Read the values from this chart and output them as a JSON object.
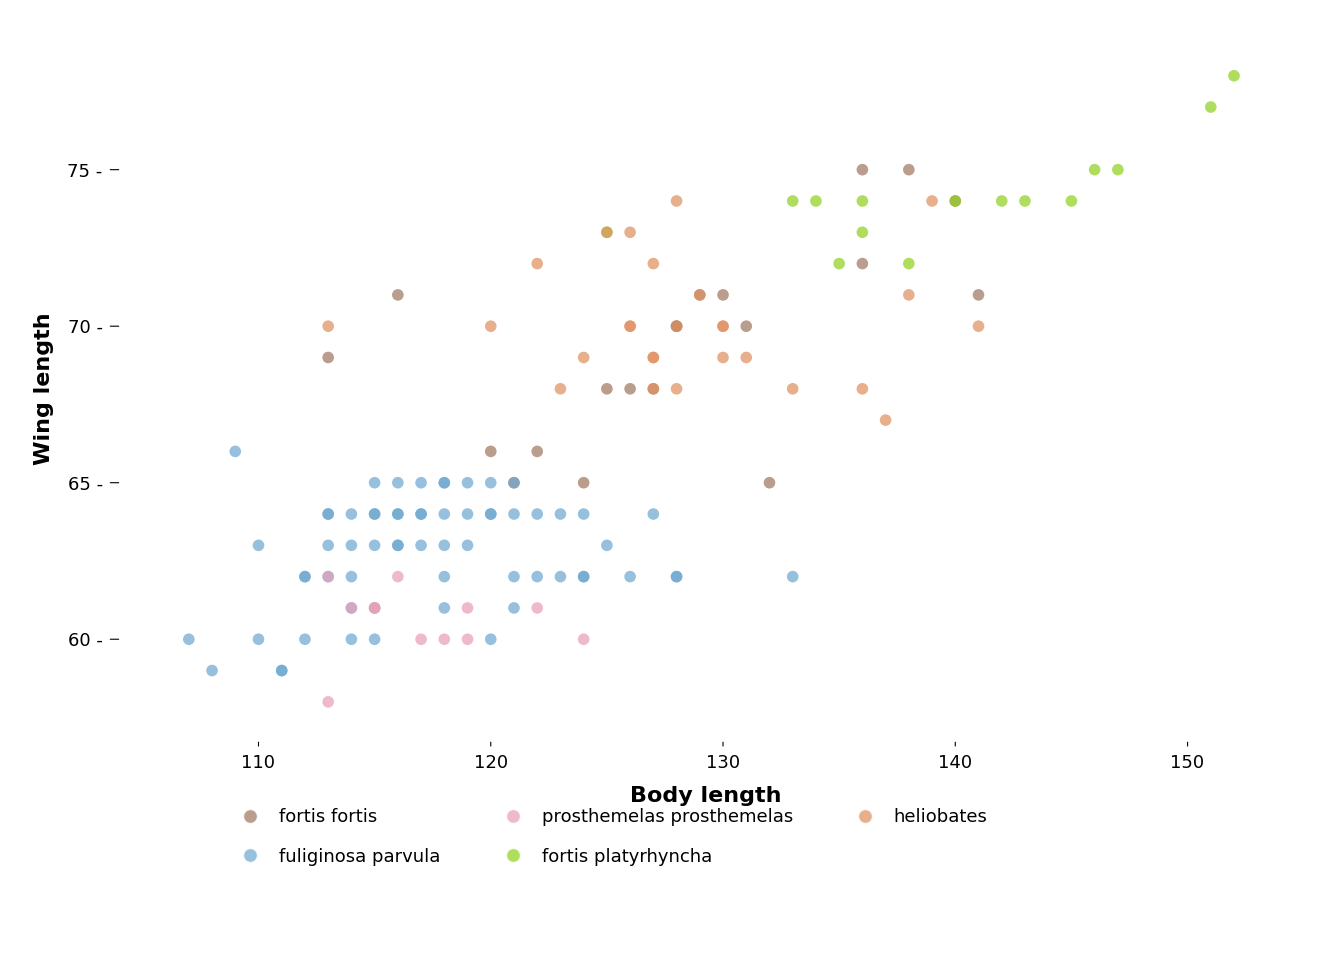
{
  "species": {
    "fortis_fortis": {
      "color": "#A07860",
      "label": "fortis fortis",
      "points": [
        [
          113,
          69
        ],
        [
          116,
          71
        ],
        [
          120,
          66
        ],
        [
          121,
          65
        ],
        [
          122,
          66
        ],
        [
          124,
          65
        ],
        [
          125,
          68
        ],
        [
          126,
          68
        ],
        [
          127,
          68
        ],
        [
          128,
          70
        ],
        [
          128,
          70
        ],
        [
          129,
          71
        ],
        [
          130,
          71
        ],
        [
          131,
          70
        ],
        [
          132,
          65
        ],
        [
          136,
          72
        ],
        [
          136,
          75
        ],
        [
          138,
          75
        ],
        [
          140,
          74
        ],
        [
          141,
          71
        ]
      ]
    },
    "fuliginosa_parvula": {
      "color": "#6EA8D0",
      "label": "fuliginosa parvula",
      "points": [
        [
          107,
          60
        ],
        [
          108,
          59
        ],
        [
          109,
          66
        ],
        [
          110,
          63
        ],
        [
          110,
          60
        ],
        [
          111,
          59
        ],
        [
          111,
          59
        ],
        [
          112,
          62
        ],
        [
          112,
          62
        ],
        [
          112,
          60
        ],
        [
          113,
          64
        ],
        [
          113,
          64
        ],
        [
          113,
          63
        ],
        [
          113,
          62
        ],
        [
          114,
          64
        ],
        [
          114,
          63
        ],
        [
          114,
          62
        ],
        [
          114,
          61
        ],
        [
          114,
          60
        ],
        [
          115,
          65
        ],
        [
          115,
          64
        ],
        [
          115,
          64
        ],
        [
          115,
          63
        ],
        [
          115,
          61
        ],
        [
          115,
          60
        ],
        [
          116,
          65
        ],
        [
          116,
          64
        ],
        [
          116,
          64
        ],
        [
          116,
          63
        ],
        [
          116,
          63
        ],
        [
          117,
          65
        ],
        [
          117,
          64
        ],
        [
          117,
          64
        ],
        [
          117,
          63
        ],
        [
          118,
          65
        ],
        [
          118,
          65
        ],
        [
          118,
          64
        ],
        [
          118,
          63
        ],
        [
          118,
          62
        ],
        [
          118,
          61
        ],
        [
          119,
          65
        ],
        [
          119,
          64
        ],
        [
          119,
          63
        ],
        [
          120,
          65
        ],
        [
          120,
          64
        ],
        [
          120,
          64
        ],
        [
          120,
          60
        ],
        [
          121,
          65
        ],
        [
          121,
          64
        ],
        [
          121,
          62
        ],
        [
          121,
          61
        ],
        [
          122,
          64
        ],
        [
          122,
          62
        ],
        [
          123,
          64
        ],
        [
          123,
          62
        ],
        [
          124,
          64
        ],
        [
          124,
          62
        ],
        [
          124,
          62
        ],
        [
          125,
          63
        ],
        [
          126,
          62
        ],
        [
          127,
          64
        ],
        [
          128,
          62
        ],
        [
          128,
          62
        ],
        [
          133,
          62
        ]
      ]
    },
    "prosthemelas_prosthemelas": {
      "color": "#E8A0B8",
      "label": "prosthemelas prosthemelas",
      "points": [
        [
          113,
          62
        ],
        [
          114,
          61
        ],
        [
          115,
          61
        ],
        [
          115,
          61
        ],
        [
          116,
          62
        ],
        [
          117,
          60
        ],
        [
          118,
          60
        ],
        [
          119,
          60
        ],
        [
          119,
          61
        ],
        [
          122,
          61
        ],
        [
          124,
          60
        ],
        [
          113,
          58
        ]
      ]
    },
    "fortis_platyrhyncha": {
      "color": "#90D020",
      "label": "fortis platyrhyncha",
      "points": [
        [
          125,
          73
        ],
        [
          133,
          74
        ],
        [
          134,
          74
        ],
        [
          135,
          72
        ],
        [
          136,
          74
        ],
        [
          136,
          73
        ],
        [
          138,
          72
        ],
        [
          140,
          74
        ],
        [
          142,
          74
        ],
        [
          143,
          74
        ],
        [
          145,
          74
        ],
        [
          146,
          75
        ],
        [
          147,
          75
        ],
        [
          151,
          77
        ],
        [
          152,
          78
        ]
      ]
    },
    "heliobates": {
      "color": "#E09060",
      "label": "heliobates",
      "points": [
        [
          113,
          70
        ],
        [
          120,
          70
        ],
        [
          122,
          72
        ],
        [
          123,
          68
        ],
        [
          124,
          69
        ],
        [
          125,
          73
        ],
        [
          126,
          73
        ],
        [
          126,
          70
        ],
        [
          126,
          70
        ],
        [
          127,
          72
        ],
        [
          127,
          69
        ],
        [
          127,
          69
        ],
        [
          127,
          68
        ],
        [
          128,
          70
        ],
        [
          128,
          68
        ],
        [
          128,
          74
        ],
        [
          129,
          71
        ],
        [
          130,
          70
        ],
        [
          130,
          70
        ],
        [
          130,
          69
        ],
        [
          131,
          69
        ],
        [
          133,
          68
        ],
        [
          136,
          68
        ],
        [
          137,
          67
        ],
        [
          138,
          71
        ],
        [
          139,
          74
        ],
        [
          141,
          70
        ]
      ]
    }
  },
  "xlabel": "Body length",
  "ylabel": "Wing length",
  "xlim": [
    103.5,
    155
  ],
  "ylim": [
    56.5,
    79.5
  ],
  "xticks": [
    110,
    120,
    130,
    140,
    150
  ],
  "yticks": [
    60,
    65,
    70,
    75
  ],
  "background_color": "#ffffff",
  "marker_size": 70,
  "alpha": 0.72,
  "axis_label_fontsize": 16,
  "tick_fontsize": 13,
  "legend_fontsize": 13,
  "legend_order": [
    "fortis_fortis",
    "fuliginosa_parvula",
    "prosthemelas_prosthemelas",
    "fortis_platyrhyncha",
    "heliobates"
  ]
}
